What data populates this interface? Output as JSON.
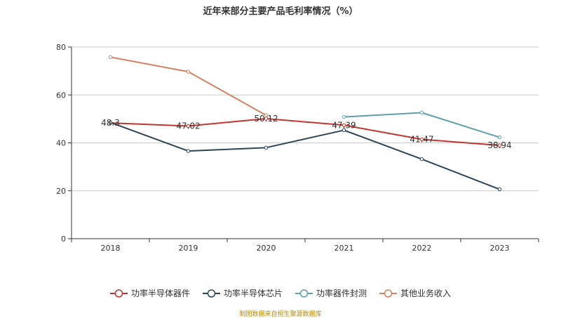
{
  "title": "近年来部分主要产品毛利率情况（%）",
  "source_note": "制图数据来自恒生聚源数据库",
  "colors": {
    "series": [
      "#c23531",
      "#2f4554",
      "#61a0a8",
      "#d48265"
    ],
    "axis": "#333333",
    "grid": "#cccccc",
    "label": "#333333"
  },
  "chart_data": {
    "type": "line",
    "title": "近年来部分主要产品毛利率情况（%）",
    "categories": [
      "2018",
      "2019",
      "2020",
      "2021",
      "2022",
      "2023"
    ],
    "y_ticks": [
      "0",
      "20",
      "40",
      "60",
      "80"
    ],
    "ylim": [
      0,
      80
    ],
    "grid": true,
    "legend_position": "bottom",
    "series": [
      {
        "name": "功率半导体器件",
        "values": [
          48.3,
          47.02,
          50.12,
          47.39,
          41.47,
          38.94
        ],
        "labels": [
          "48.3",
          "47.02",
          "50.12",
          "47.39",
          "41.47",
          "38.94"
        ]
      },
      {
        "name": "功率半导体芯片",
        "values": [
          48.5,
          36.6,
          38.0,
          45.3,
          33.2,
          20.6
        ]
      },
      {
        "name": "功率器件封测",
        "values": [
          null,
          null,
          null,
          50.8,
          52.6,
          42.3
        ]
      },
      {
        "name": "其他业务收入",
        "values": [
          75.8,
          69.7,
          51.5,
          null,
          null,
          null
        ]
      }
    ]
  }
}
